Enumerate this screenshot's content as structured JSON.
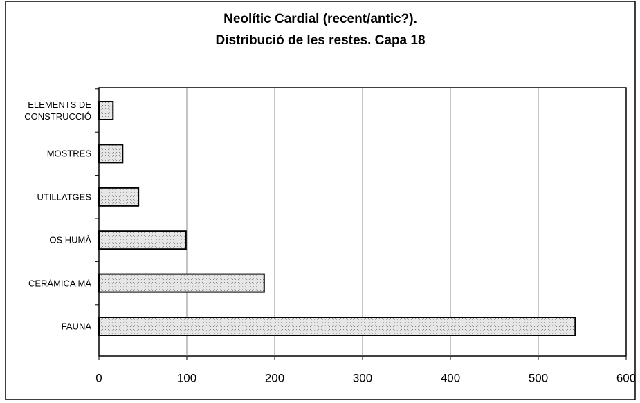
{
  "chart_data": {
    "type": "bar",
    "orientation": "horizontal",
    "title": "Neolític Cardial (recent/antic?).\nDistribució de les restes. Capa 18",
    "categories": [
      "ELEMENTS DE\nCONSTRUCCIÓ",
      "MOSTRES",
      "UTILLATGES",
      "OS HUMÀ",
      "CERÀMICA MÀ",
      "FAUNA"
    ],
    "values": [
      16,
      27,
      45,
      99,
      188,
      542
    ],
    "color": "#d4d4d4",
    "xlim": [
      0,
      600
    ],
    "xticks": [
      0,
      100,
      200,
      300,
      400,
      500,
      600
    ],
    "grid": true
  }
}
